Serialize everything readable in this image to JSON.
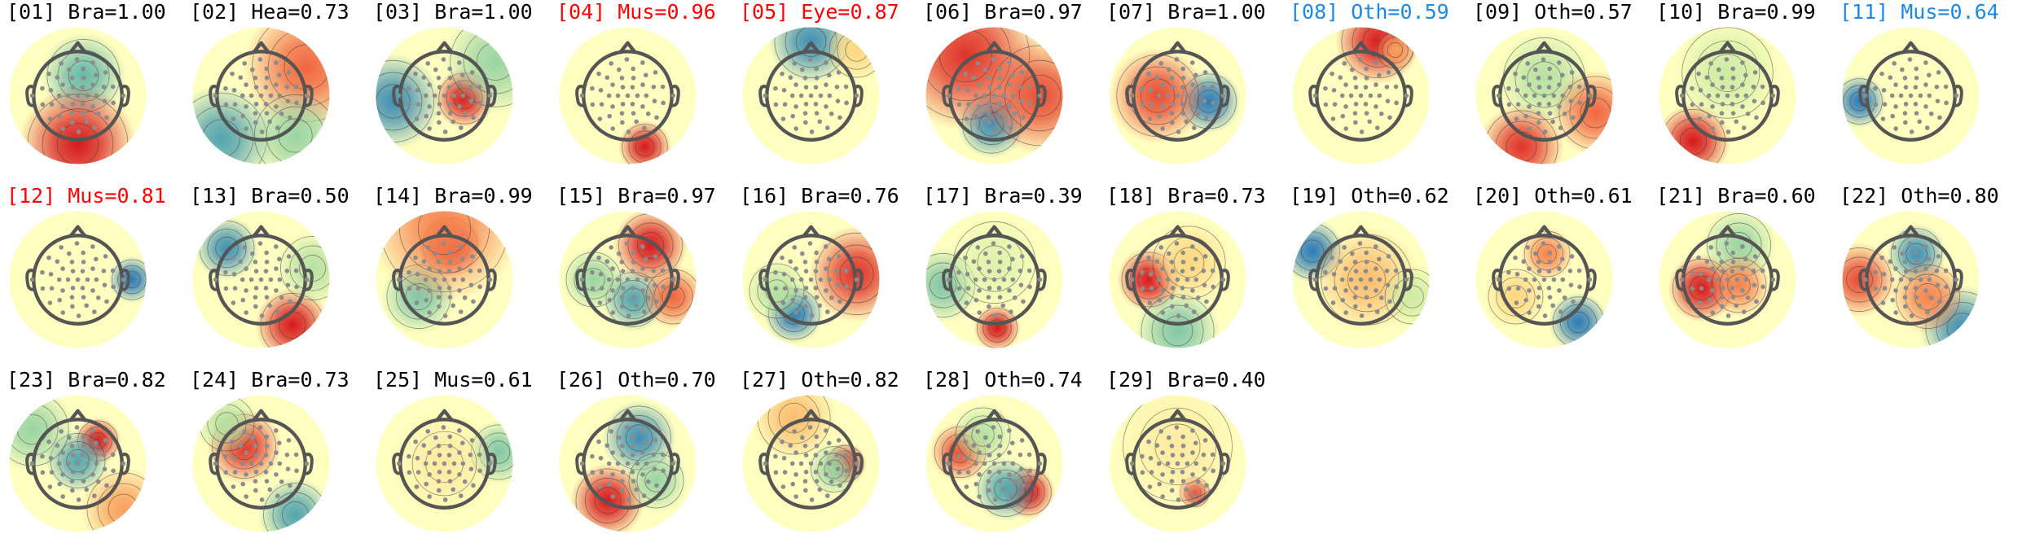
{
  "colors": {
    "default_label": "#000000",
    "flagged_red": "#ff0000",
    "flagged_blue": "#1e88e5",
    "head_outline": "#555555",
    "sensor": "#8c8c8c",
    "contour": "#333333",
    "colormap": [
      "#2c7bb6",
      "#6fbfa8",
      "#c7e9a0",
      "#ffffbf",
      "#fdd17a",
      "#f46d43",
      "#d7191c"
    ]
  },
  "components": [
    {
      "label": "[01] Bra=1.00",
      "status": "default",
      "blobs": [
        {
          "dx": 0.1,
          "dy": -0.35,
          "r": 0.4,
          "v": -0.7
        },
        {
          "dx": 0.0,
          "dy": 0.85,
          "r": 0.55,
          "v": 1.0
        }
      ]
    },
    {
      "label": "[02] Hea=0.73",
      "status": "default",
      "blobs": [
        {
          "dx": 0.8,
          "dy": -0.5,
          "r": 0.6,
          "v": 0.7
        },
        {
          "dx": -0.7,
          "dy": 0.75,
          "r": 0.5,
          "v": -0.8
        },
        {
          "dx": 0.6,
          "dy": 0.7,
          "r": 0.45,
          "v": -0.5
        }
      ]
    },
    {
      "label": "[03] Bra=1.00",
      "status": "default",
      "blobs": [
        {
          "dx": 0.35,
          "dy": 0.05,
          "r": 0.28,
          "v": 1.0
        },
        {
          "dx": -0.9,
          "dy": 0.1,
          "r": 0.45,
          "v": -0.9
        },
        {
          "dx": 0.9,
          "dy": -0.6,
          "r": 0.5,
          "v": -0.5
        }
      ]
    },
    {
      "label": "[04] Mus=0.96",
      "status": "red",
      "blobs": [
        {
          "dx": 0.3,
          "dy": 0.9,
          "r": 0.25,
          "v": 1.0
        }
      ]
    },
    {
      "label": "[05] Eye=0.87",
      "status": "red",
      "blobs": [
        {
          "dx": 0.0,
          "dy": -0.95,
          "r": 0.4,
          "v": -0.9
        },
        {
          "dx": 0.8,
          "dy": -0.8,
          "r": 0.3,
          "v": 0.3
        }
      ]
    },
    {
      "label": "[06] Bra=0.97",
      "status": "default",
      "blobs": [
        {
          "dx": -0.05,
          "dy": 0.5,
          "r": 0.32,
          "v": -0.9
        },
        {
          "dx": -0.5,
          "dy": -0.7,
          "r": 0.7,
          "v": 0.9
        },
        {
          "dx": 0.8,
          "dy": 0.0,
          "r": 0.55,
          "v": 0.8
        }
      ]
    },
    {
      "label": "[07] Bra=1.00",
      "status": "default",
      "blobs": [
        {
          "dx": 0.55,
          "dy": 0.1,
          "r": 0.3,
          "v": -1.0
        },
        {
          "dx": -0.35,
          "dy": 0.0,
          "r": 0.45,
          "v": 0.8
        }
      ]
    },
    {
      "label": "[08] Oth=0.59",
      "status": "blue",
      "blobs": [
        {
          "dx": 0.3,
          "dy": -0.95,
          "r": 0.4,
          "v": 1.0
        },
        {
          "dx": 0.6,
          "dy": -0.8,
          "r": 0.2,
          "v": 0.5
        }
      ]
    },
    {
      "label": "[09] Oth=0.57",
      "status": "default",
      "blobs": [
        {
          "dx": 0.0,
          "dy": -0.3,
          "r": 0.45,
          "v": -0.4
        },
        {
          "dx": -0.4,
          "dy": 0.9,
          "r": 0.4,
          "v": 0.9
        },
        {
          "dx": 0.9,
          "dy": 0.3,
          "r": 0.4,
          "v": 0.7
        }
      ]
    },
    {
      "label": "[10] Bra=0.99",
      "status": "default",
      "blobs": [
        {
          "dx": -0.6,
          "dy": 0.8,
          "r": 0.35,
          "v": 1.0
        },
        {
          "dx": 0.0,
          "dy": -0.4,
          "r": 0.5,
          "v": -0.3
        }
      ]
    },
    {
      "label": "[11] Mus=0.64",
      "status": "blue",
      "blobs": [
        {
          "dx": -0.9,
          "dy": 0.1,
          "r": 0.25,
          "v": -1.0
        }
      ]
    },
    {
      "label": "[12] Mus=0.81",
      "status": "red",
      "blobs": [
        {
          "dx": 0.95,
          "dy": 0.0,
          "r": 0.22,
          "v": -1.0
        }
      ]
    },
    {
      "label": "[13] Bra=0.50",
      "status": "default",
      "blobs": [
        {
          "dx": -0.6,
          "dy": -0.55,
          "r": 0.3,
          "v": -0.9
        },
        {
          "dx": 0.55,
          "dy": 0.8,
          "r": 0.35,
          "v": 1.0
        },
        {
          "dx": 0.9,
          "dy": -0.2,
          "r": 0.35,
          "v": -0.4
        }
      ]
    },
    {
      "label": "[14] Bra=0.99",
      "status": "default",
      "blobs": [
        {
          "dx": 0.1,
          "dy": -0.6,
          "r": 0.3,
          "v": 1.0
        },
        {
          "dx": -0.45,
          "dy": 0.3,
          "r": 0.35,
          "v": -0.6
        },
        {
          "dx": 0.0,
          "dy": -0.9,
          "r": 0.7,
          "v": 0.6
        }
      ]
    },
    {
      "label": "[15] Bra=0.97",
      "status": "default",
      "blobs": [
        {
          "dx": 0.1,
          "dy": 0.35,
          "r": 0.3,
          "v": -0.8
        },
        {
          "dx": 0.4,
          "dy": -0.6,
          "r": 0.35,
          "v": 1.0
        },
        {
          "dx": -0.6,
          "dy": 0.0,
          "r": 0.3,
          "v": -0.5
        },
        {
          "dx": 0.8,
          "dy": 0.3,
          "r": 0.3,
          "v": 0.7
        }
      ]
    },
    {
      "label": "[16] Bra=0.76",
      "status": "default",
      "blobs": [
        {
          "dx": -0.3,
          "dy": 0.6,
          "r": 0.28,
          "v": -1.0
        },
        {
          "dx": 0.8,
          "dy": -0.1,
          "r": 0.45,
          "v": 0.9
        },
        {
          "dx": -0.6,
          "dy": 0.2,
          "r": 0.3,
          "v": -0.4
        }
      ]
    },
    {
      "label": "[17] Bra=0.39",
      "status": "default",
      "blobs": [
        {
          "dx": 0.05,
          "dy": 0.85,
          "r": 0.22,
          "v": 1.0
        },
        {
          "dx": -0.9,
          "dy": 0.1,
          "r": 0.35,
          "v": -0.6
        },
        {
          "dx": 0.0,
          "dy": -0.3,
          "r": 0.45,
          "v": -0.2
        }
      ]
    },
    {
      "label": "[18] Bra=0.73",
      "status": "default",
      "blobs": [
        {
          "dx": -0.5,
          "dy": 0.0,
          "r": 0.3,
          "v": 1.0
        },
        {
          "dx": 0.0,
          "dy": 0.9,
          "r": 0.4,
          "v": -0.6
        },
        {
          "dx": 0.2,
          "dy": -0.3,
          "r": 0.4,
          "v": 0.3
        }
      ]
    },
    {
      "label": "[19] Oth=0.62",
      "status": "default",
      "blobs": [
        {
          "dx": -0.85,
          "dy": -0.5,
          "r": 0.3,
          "v": -1.0
        },
        {
          "dx": 0.1,
          "dy": 0.0,
          "r": 0.5,
          "v": 0.4
        },
        {
          "dx": 0.9,
          "dy": 0.3,
          "r": 0.3,
          "v": -0.3
        }
      ]
    },
    {
      "label": "[20] Oth=0.61",
      "status": "default",
      "blobs": [
        {
          "dx": 0.6,
          "dy": 0.75,
          "r": 0.28,
          "v": -1.0
        },
        {
          "dx": 0.05,
          "dy": -0.45,
          "r": 0.25,
          "v": 0.6
        },
        {
          "dx": -0.5,
          "dy": 0.3,
          "r": 0.3,
          "v": 0.3
        }
      ]
    },
    {
      "label": "[21] Bra=0.60",
      "status": "default",
      "blobs": [
        {
          "dx": -0.45,
          "dy": 0.15,
          "r": 0.32,
          "v": 1.0
        },
        {
          "dx": 0.2,
          "dy": -0.6,
          "r": 0.35,
          "v": -0.5
        },
        {
          "dx": 0.2,
          "dy": 0.1,
          "r": 0.3,
          "v": 0.6
        }
      ]
    },
    {
      "label": "[22] Oth=0.80",
      "status": "default",
      "blobs": [
        {
          "dx": 0.1,
          "dy": -0.45,
          "r": 0.28,
          "v": -0.9
        },
        {
          "dx": 0.9,
          "dy": 0.85,
          "r": 0.4,
          "v": -0.9
        },
        {
          "dx": 0.3,
          "dy": 0.3,
          "r": 0.35,
          "v": 0.6
        },
        {
          "dx": -0.9,
          "dy": 0.0,
          "r": 0.35,
          "v": 0.8
        }
      ]
    },
    {
      "label": "[23] Bra=0.82",
      "status": "default",
      "blobs": [
        {
          "dx": 0.35,
          "dy": -0.4,
          "r": 0.22,
          "v": 1.0
        },
        {
          "dx": 0.0,
          "dy": -0.05,
          "r": 0.3,
          "v": -0.8
        },
        {
          "dx": -0.8,
          "dy": -0.6,
          "r": 0.4,
          "v": -0.5
        },
        {
          "dx": 0.8,
          "dy": 0.8,
          "r": 0.4,
          "v": 0.5
        }
      ]
    },
    {
      "label": "[24] Bra=0.73",
      "status": "default",
      "blobs": [
        {
          "dx": -0.3,
          "dy": -0.3,
          "r": 0.35,
          "v": 0.9
        },
        {
          "dx": 0.6,
          "dy": 0.9,
          "r": 0.35,
          "v": -0.8
        },
        {
          "dx": -0.6,
          "dy": -0.7,
          "r": 0.3,
          "v": -0.4
        }
      ]
    },
    {
      "label": "[25] Mus=0.61",
      "status": "default",
      "blobs": [
        {
          "dx": 0.95,
          "dy": -0.2,
          "r": 0.3,
          "v": -0.6
        },
        {
          "dx": 0.0,
          "dy": 0.0,
          "r": 0.5,
          "v": 0.15
        }
      ]
    },
    {
      "label": "[26] Oth=0.70",
      "status": "default",
      "blobs": [
        {
          "dx": 0.2,
          "dy": -0.45,
          "r": 0.35,
          "v": -0.9
        },
        {
          "dx": -0.35,
          "dy": 0.65,
          "r": 0.35,
          "v": 1.0
        },
        {
          "dx": 0.5,
          "dy": 0.3,
          "r": 0.3,
          "v": -0.5
        }
      ]
    },
    {
      "label": "[27] Oth=0.82",
      "status": "default",
      "blobs": [
        {
          "dx": 0.6,
          "dy": 0.0,
          "r": 0.2,
          "v": 1.0
        },
        {
          "dx": 0.4,
          "dy": 0.1,
          "r": 0.25,
          "v": -0.5
        },
        {
          "dx": -0.3,
          "dy": -0.8,
          "r": 0.4,
          "v": 0.4
        }
      ]
    },
    {
      "label": "[28] Oth=0.74",
      "status": "default",
      "blobs": [
        {
          "dx": 0.6,
          "dy": 0.5,
          "r": 0.25,
          "v": 1.0
        },
        {
          "dx": -0.6,
          "dy": -0.2,
          "r": 0.28,
          "v": 0.8
        },
        {
          "dx": 0.2,
          "dy": 0.45,
          "r": 0.3,
          "v": -0.8
        },
        {
          "dx": -0.2,
          "dy": -0.5,
          "r": 0.3,
          "v": -0.4
        }
      ]
    },
    {
      "label": "[29] Bra=0.40",
      "status": "default",
      "blobs": [
        {
          "dx": 0.3,
          "dy": 0.5,
          "r": 0.16,
          "v": 1.0
        },
        {
          "dx": 0.0,
          "dy": -0.3,
          "r": 0.6,
          "v": 0.15
        }
      ]
    }
  ]
}
